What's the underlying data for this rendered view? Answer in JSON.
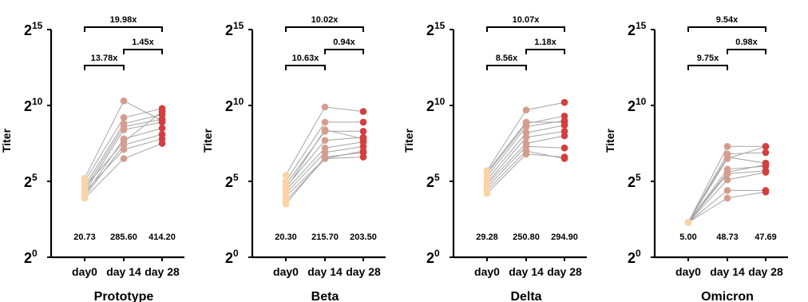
{
  "chart_data": [
    {
      "type": "scatter",
      "title": "Prototype",
      "ylabel": "Titer",
      "yscale": "log2",
      "ylim": [
        0,
        15
      ],
      "yticks": [
        {
          "base": "2",
          "exp": "0",
          "value": 0
        },
        {
          "base": "2",
          "exp": "5",
          "value": 5
        },
        {
          "base": "2",
          "exp": "10",
          "value": 10
        },
        {
          "base": "2",
          "exp": "15",
          "value": 15
        }
      ],
      "categories": [
        "day0",
        "day 14",
        "day 28"
      ],
      "gmt_labels": [
        "20.73",
        "285.60",
        "414.20"
      ],
      "fold_changes": [
        {
          "from": "day0",
          "to": "day 14",
          "label": "13.78x"
        },
        {
          "from": "day 14",
          "to": "day 28",
          "label": "1.45x"
        },
        {
          "from": "day0",
          "to": "day 28",
          "label": "19.98x"
        }
      ],
      "colors": [
        "#fcd3a6",
        "#d49d8e",
        "#d53e3e"
      ],
      "subjects_log2": [
        [
          5.2,
          10.3,
          9.0
        ],
        [
          5.0,
          9.2,
          9.8
        ],
        [
          4.7,
          8.8,
          9.4
        ],
        [
          4.5,
          8.6,
          9.1
        ],
        [
          4.3,
          8.4,
          8.9
        ],
        [
          4.1,
          7.8,
          8.5
        ],
        [
          4.0,
          7.4,
          8.1
        ],
        [
          4.3,
          7.1,
          7.8
        ],
        [
          4.6,
          7.6,
          9.6
        ],
        [
          3.9,
          6.5,
          7.5
        ]
      ]
    },
    {
      "type": "scatter",
      "title": "Beta",
      "ylabel": "Titer",
      "yscale": "log2",
      "ylim": [
        0,
        15
      ],
      "yticks": [
        {
          "base": "2",
          "exp": "0",
          "value": 0
        },
        {
          "base": "2",
          "exp": "5",
          "value": 5
        },
        {
          "base": "2",
          "exp": "10",
          "value": 10
        },
        {
          "base": "2",
          "exp": "15",
          "value": 15
        }
      ],
      "categories": [
        "day0",
        "day 14",
        "day 28"
      ],
      "gmt_labels": [
        "20.30",
        "215.70",
        "203.50"
      ],
      "fold_changes": [
        {
          "from": "day0",
          "to": "day 14",
          "label": "10.63x"
        },
        {
          "from": "day 14",
          "to": "day 28",
          "label": "0.94x"
        },
        {
          "from": "day0",
          "to": "day 28",
          "label": "10.02x"
        }
      ],
      "colors": [
        "#fcd3a6",
        "#d49d8e",
        "#d53e3e"
      ],
      "subjects_log2": [
        [
          5.4,
          9.9,
          9.6
        ],
        [
          5.0,
          8.9,
          8.9
        ],
        [
          4.8,
          8.3,
          8.3
        ],
        [
          4.6,
          7.7,
          7.9
        ],
        [
          4.4,
          7.2,
          7.6
        ],
        [
          4.2,
          6.9,
          7.3
        ],
        [
          4.0,
          6.5,
          7.0
        ],
        [
          3.7,
          6.5,
          6.6
        ],
        [
          3.5,
          6.6,
          6.9
        ],
        [
          4.5,
          8.4,
          7.8
        ]
      ]
    },
    {
      "type": "scatter",
      "title": "Delta",
      "ylabel": "Titer",
      "yscale": "log2",
      "ylim": [
        0,
        15
      ],
      "yticks": [
        {
          "base": "2",
          "exp": "0",
          "value": 0
        },
        {
          "base": "2",
          "exp": "5",
          "value": 5
        },
        {
          "base": "2",
          "exp": "10",
          "value": 10
        },
        {
          "base": "2",
          "exp": "15",
          "value": 15
        }
      ],
      "categories": [
        "day0",
        "day 14",
        "day 28"
      ],
      "gmt_labels": [
        "29.28",
        "250.80",
        "294.90"
      ],
      "fold_changes": [
        {
          "from": "day0",
          "to": "day 14",
          "label": "8.56x"
        },
        {
          "from": "day 14",
          "to": "day 28",
          "label": "1.18x"
        },
        {
          "from": "day0",
          "to": "day 28",
          "label": "10.07x"
        }
      ],
      "colors": [
        "#fcd3a6",
        "#d49d8e",
        "#d53e3e"
      ],
      "subjects_log2": [
        [
          5.7,
          9.7,
          10.2
        ],
        [
          5.5,
          8.8,
          9.3
        ],
        [
          5.3,
          8.6,
          9.0
        ],
        [
          5.1,
          8.2,
          8.7
        ],
        [
          4.9,
          7.9,
          8.3
        ],
        [
          4.8,
          7.5,
          8.0
        ],
        [
          4.6,
          7.3,
          7.2
        ],
        [
          4.4,
          7.0,
          6.5
        ],
        [
          4.2,
          6.8,
          6.6
        ],
        [
          5.6,
          8.9,
          8.9
        ]
      ]
    },
    {
      "type": "scatter",
      "title": "Omicron",
      "ylabel": "Titer",
      "yscale": "log2",
      "ylim": [
        0,
        15
      ],
      "yticks": [
        {
          "base": "2",
          "exp": "0",
          "value": 0
        },
        {
          "base": "2",
          "exp": "5",
          "value": 5
        },
        {
          "base": "2",
          "exp": "10",
          "value": 10
        },
        {
          "base": "2",
          "exp": "15",
          "value": 15
        }
      ],
      "categories": [
        "day0",
        "day 14",
        "day 28"
      ],
      "gmt_labels": [
        "5.00",
        "48.73",
        "47.69"
      ],
      "fold_changes": [
        {
          "from": "day0",
          "to": "day 14",
          "label": "9.75x"
        },
        {
          "from": "day 14",
          "to": "day 28",
          "label": "0.98x"
        },
        {
          "from": "day0",
          "to": "day 28",
          "label": "9.54x"
        }
      ],
      "colors": [
        "#fcd3a6",
        "#d49d8e",
        "#d53e3e"
      ],
      "subjects_log2": [
        [
          2.3,
          7.3,
          7.3
        ],
        [
          2.3,
          6.8,
          6.9
        ],
        [
          2.3,
          6.6,
          6.2
        ],
        [
          2.3,
          5.8,
          6.0
        ],
        [
          2.3,
          5.5,
          5.7
        ],
        [
          2.3,
          5.1,
          5.6
        ],
        [
          2.3,
          4.4,
          4.4
        ],
        [
          2.3,
          3.9,
          4.3
        ],
        [
          2.3,
          5.6,
          6.1
        ],
        [
          2.3,
          6.5,
          7.3
        ]
      ]
    }
  ]
}
